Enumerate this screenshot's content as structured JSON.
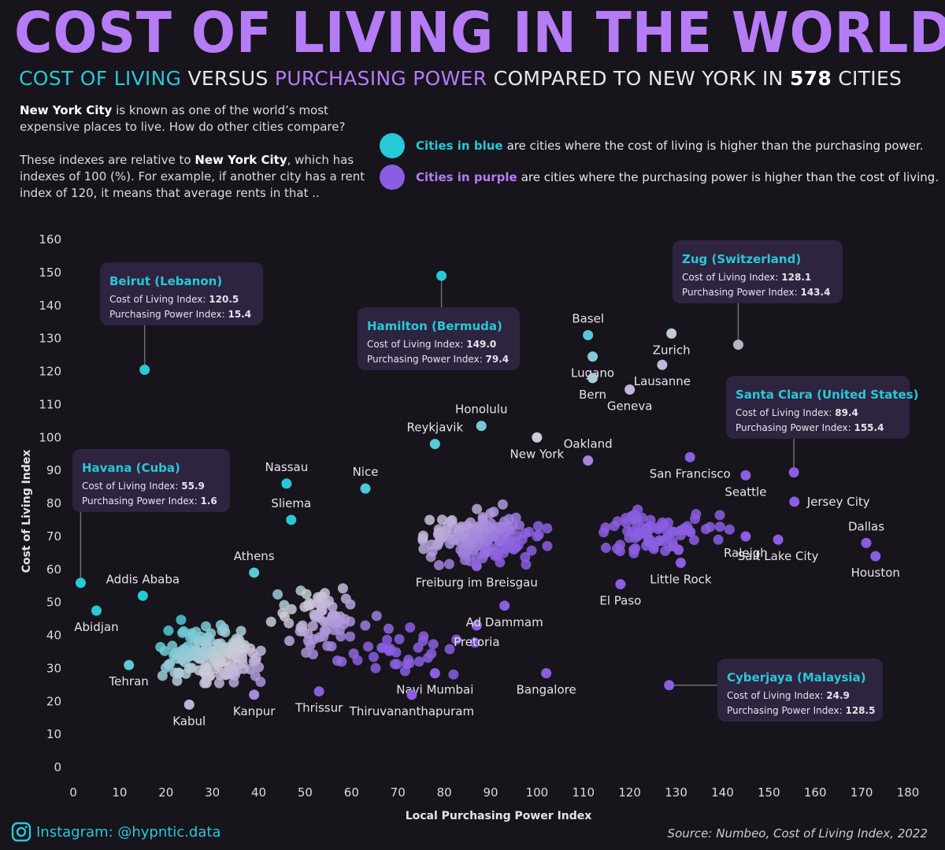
{
  "header": {
    "title": "COST OF LIVING IN THE WORLD",
    "sub_cost": "COST OF LIVING",
    "sub_versus": "VERSUS",
    "sub_power": "PURCHASING POWER",
    "sub_compared": "COMPARED TO NEW YORK IN",
    "sub_count": "578",
    "sub_cities": "CITIES"
  },
  "intro": {
    "p1_city": "New York City",
    "p1_rest": " is known as one of the world’s most expensive places to live. How do other cities compare?",
    "p2_start": "These indexes are relative to ",
    "p2_city": "New York City",
    "p2_rest": ", which has indexes of 100 (%). For example, if another city has a rent index of 120, it means that average rents in that .."
  },
  "legend": {
    "blue_label": "Cities in blue",
    "blue_text": "are cities where the cost of living is higher than the purchasing power.",
    "purple_label": "Cities in purple",
    "purple_text": "are cities where the purchasing power is higher than the cost of living."
  },
  "colors": {
    "background": "#17141c",
    "title": "#b57cf5",
    "blue": "#27c9d6",
    "purple": "#8a5ee0",
    "middle": "#cfcbd6",
    "tooltip_bg": "#2e2440"
  },
  "chart_data": {
    "type": "scatter",
    "xlabel": "Local Purchasing Power Index",
    "ylabel": "Cost of Living Index",
    "xlim": [
      0,
      180
    ],
    "ylim": [
      0,
      160
    ],
    "xticks": [
      0,
      10,
      20,
      30,
      40,
      50,
      60,
      70,
      80,
      90,
      100,
      110,
      120,
      130,
      140,
      150,
      160,
      170,
      180
    ],
    "yticks": [
      0,
      10,
      20,
      30,
      40,
      50,
      60,
      70,
      80,
      90,
      100,
      110,
      120,
      130,
      140,
      150,
      160
    ],
    "total_cities": 578,
    "labeled_cities": [
      {
        "name": "Basel",
        "x": 111,
        "y": 131,
        "pos": "above"
      },
      {
        "name": "Zurich",
        "x": 129,
        "y": 131.5,
        "pos": "below"
      },
      {
        "name": "Lugano",
        "x": 112,
        "y": 124.5,
        "pos": "below"
      },
      {
        "name": "Lausanne",
        "x": 127,
        "y": 122,
        "pos": "below"
      },
      {
        "name": "Bern",
        "x": 112,
        "y": 118,
        "pos": "below"
      },
      {
        "name": "Geneva",
        "x": 120,
        "y": 114.5,
        "pos": "below"
      },
      {
        "name": "Honolulu",
        "x": 88,
        "y": 103.5,
        "pos": "above"
      },
      {
        "name": "Reykjavik",
        "x": 78,
        "y": 98,
        "pos": "above"
      },
      {
        "name": "New York",
        "x": 100,
        "y": 100,
        "pos": "below"
      },
      {
        "name": "Oakland",
        "x": 111,
        "y": 93,
        "pos": "above"
      },
      {
        "name": "San Francisco",
        "x": 133,
        "y": 94,
        "pos": "below"
      },
      {
        "name": "Seattle",
        "x": 145,
        "y": 88.5,
        "pos": "below"
      },
      {
        "name": "Jersey City",
        "x": 155.5,
        "y": 80.5,
        "pos": "right"
      },
      {
        "name": "Dallas",
        "x": 171,
        "y": 68,
        "pos": "above"
      },
      {
        "name": "Houston",
        "x": 173,
        "y": 64,
        "pos": "below"
      },
      {
        "name": "Raleigh",
        "x": 145,
        "y": 70,
        "pos": "below"
      },
      {
        "name": "Salt Lake City",
        "x": 152,
        "y": 69,
        "pos": "below"
      },
      {
        "name": "Little Rock",
        "x": 131,
        "y": 62,
        "pos": "below"
      },
      {
        "name": "El Paso",
        "x": 118,
        "y": 55.5,
        "pos": "below"
      },
      {
        "name": "Nassau",
        "x": 46,
        "y": 86,
        "pos": "above"
      },
      {
        "name": "Nice",
        "x": 63,
        "y": 84.5,
        "pos": "above"
      },
      {
        "name": "Sliema",
        "x": 47,
        "y": 75,
        "pos": "above"
      },
      {
        "name": "Athens",
        "x": 39,
        "y": 59,
        "pos": "above"
      },
      {
        "name": "Addis Ababa",
        "x": 15,
        "y": 52,
        "pos": "above"
      },
      {
        "name": "Abidjan",
        "x": 5,
        "y": 47.5,
        "pos": "below"
      },
      {
        "name": "Tehran",
        "x": 12,
        "y": 31,
        "pos": "below"
      },
      {
        "name": "Kabul",
        "x": 25,
        "y": 19,
        "pos": "below"
      },
      {
        "name": "Kanpur",
        "x": 39,
        "y": 22,
        "pos": "below"
      },
      {
        "name": "Thrissur",
        "x": 53,
        "y": 23,
        "pos": "below"
      },
      {
        "name": "Navi Mumbai",
        "x": 78,
        "y": 28.5,
        "pos": "below"
      },
      {
        "name": "Thiruvananthapuram",
        "x": 73,
        "y": 22,
        "pos": "below"
      },
      {
        "name": "Bangalore",
        "x": 102,
        "y": 28.5,
        "pos": "below"
      },
      {
        "name": "Pretoria",
        "x": 87,
        "y": 43,
        "pos": "below"
      },
      {
        "name": "Ad Dammam",
        "x": 93,
        "y": 49,
        "pos": "below"
      },
      {
        "name": "Freiburg im Breisgau",
        "x": 87,
        "y": 61,
        "pos": "below"
      }
    ],
    "highlighted_cities": [
      {
        "name": "Beirut (Lebanon)",
        "x": 15.4,
        "y": 120.5,
        "cost": "120.5",
        "power": "15.4"
      },
      {
        "name": "Hamilton (Bermuda)",
        "x": 79.4,
        "y": 149.0,
        "cost": "149.0",
        "power": "79.4"
      },
      {
        "name": "Zug (Switzerland)",
        "x": 143.4,
        "y": 128.1,
        "cost": "128.1",
        "power": "143.4"
      },
      {
        "name": "Santa Clara (United States)",
        "x": 155.4,
        "y": 89.4,
        "cost": "89.4",
        "power": "155.4"
      },
      {
        "name": "Havana (Cuba)",
        "x": 1.6,
        "y": 55.9,
        "cost": "55.9",
        "power": "1.6"
      },
      {
        "name": "Cyberjaya (Malaysia)",
        "x": 128.5,
        "y": 24.9,
        "cost": "24.9",
        "power": "128.5"
      }
    ],
    "tooltip_labels": {
      "cost": "Cost of Living Index: ",
      "power": "Purchasing Power Index: "
    }
  },
  "footer": {
    "instagram": "Instagram: @hypntic.data",
    "source": "Source: Numbeo, Cost of Living Index, 2022"
  }
}
